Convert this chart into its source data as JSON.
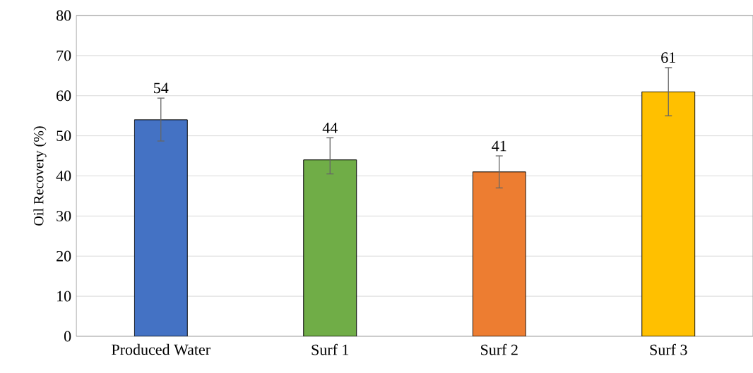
{
  "chart_data": {
    "type": "bar",
    "ylabel": "Oil Recovery (%)",
    "categories": [
      "Produced Water",
      "Surf 1",
      "Surf 2",
      "Surf 3"
    ],
    "values": [
      54,
      44,
      41,
      61
    ],
    "colors": [
      "#4472c4",
      "#70ad47",
      "#ed7d31",
      "#ffc000"
    ],
    "errors": [
      [
        48.7,
        59.4
      ],
      [
        40.5,
        49.5
      ],
      [
        37,
        45
      ],
      [
        55,
        67
      ]
    ],
    "ylim": [
      0,
      80
    ],
    "yticks": [
      0,
      10,
      20,
      30,
      40,
      50,
      60,
      70,
      80
    ],
    "grid": "y",
    "data_labels": true
  }
}
